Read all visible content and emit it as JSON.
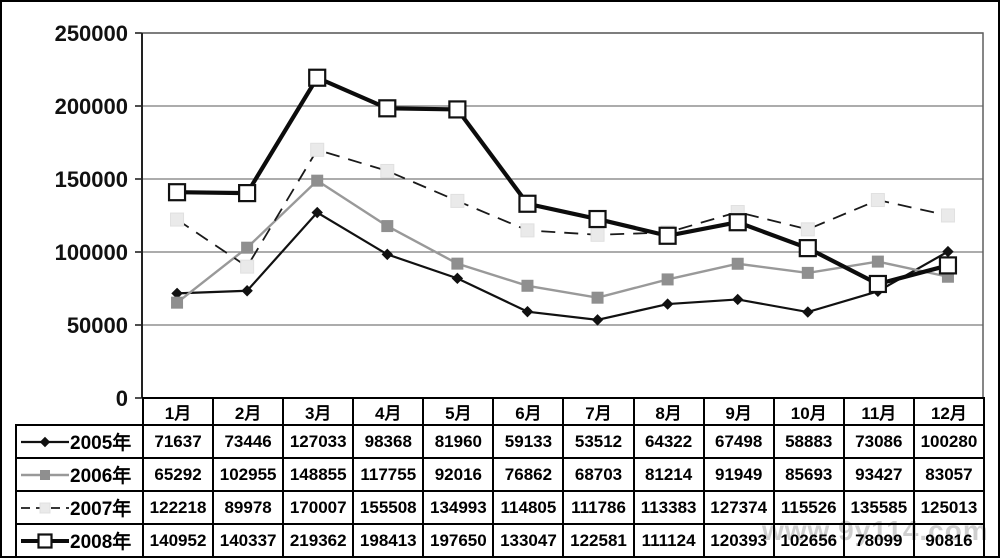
{
  "watermark": "www.9y114.com",
  "axis": {
    "ytick_labels": [
      "250000",
      "200000",
      "150000",
      "100000",
      "50000",
      "0"
    ]
  },
  "colors": {
    "gridline": "#7a7a7a",
    "plot_border": "#5f5f5f",
    "axis_label": "#111111",
    "table_border": "#000000"
  },
  "chart_data": {
    "type": "line",
    "title": "",
    "xlabel": "",
    "ylabel": "",
    "ylim": [
      0,
      250000
    ],
    "ytick_step": 50000,
    "grid": true,
    "legend_position": "left-of-data-table",
    "categories": [
      "1月",
      "2月",
      "3月",
      "4月",
      "5月",
      "6月",
      "7月",
      "8月",
      "9月",
      "10月",
      "11月",
      "12月"
    ],
    "series": [
      {
        "name": "2005年",
        "values": [
          71637,
          73446,
          127033,
          98368,
          81960,
          59133,
          53512,
          64322,
          67498,
          58883,
          73086,
          100280
        ],
        "line_color": "#111111",
        "line_width": 2.2,
        "dash": "none",
        "marker": "diamond",
        "marker_fill": "#111111",
        "marker_stroke": "#111111",
        "marker_size": 10
      },
      {
        "name": "2006年",
        "values": [
          65292,
          102955,
          148855,
          117755,
          92016,
          76862,
          68703,
          81214,
          91949,
          85693,
          93427,
          83057
        ],
        "line_color": "#999999",
        "line_width": 2.4,
        "dash": "none",
        "marker": "square",
        "marker_fill": "#8f8f8f",
        "marker_stroke": "#8f8f8f",
        "marker_size": 11
      },
      {
        "name": "2007年",
        "values": [
          122218,
          89978,
          170007,
          155508,
          134993,
          114805,
          111786,
          113383,
          127374,
          115526,
          135585,
          125013
        ],
        "line_color": "#1a1a1a",
        "line_width": 1.8,
        "dash": "14,9",
        "marker": "square",
        "marker_fill": "#eaeaea",
        "marker_stroke": "#e0e0e0",
        "marker_size": 13
      },
      {
        "name": "2008年",
        "values": [
          140952,
          140337,
          219362,
          198413,
          197650,
          133047,
          122581,
          111124,
          120393,
          102656,
          78099,
          90816
        ],
        "line_color": "#0c0c0c",
        "line_width": 4.2,
        "dash": "none",
        "marker": "open-square",
        "marker_fill": "#ffffff",
        "marker_stroke": "#111111",
        "marker_size": 16
      }
    ]
  }
}
